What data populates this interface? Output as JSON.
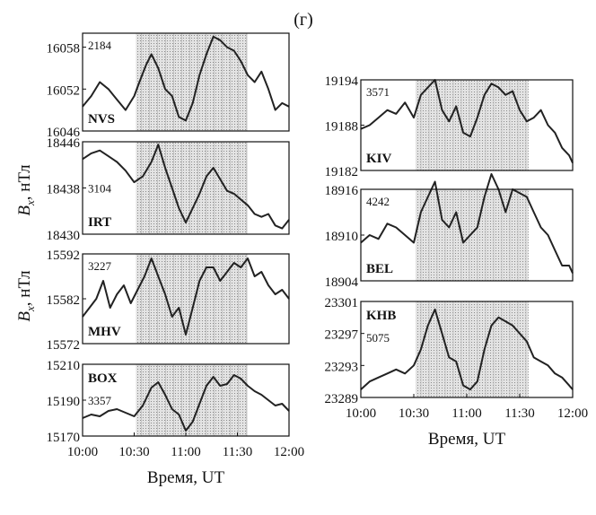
{
  "figure": {
    "label": "(г)",
    "ylabel_left": "Bx, нТл",
    "ylabel_parts": {
      "main": "B",
      "sub": "x",
      "unit": ", нТл"
    }
  },
  "style": {
    "line_color": "#222222",
    "shade_color": "#d3d3d3",
    "frame_color": "#111111",
    "text_color": "#111111"
  },
  "chart_data": [
    {
      "type": "line",
      "station": "NVS",
      "number": "2184",
      "x_range": [
        "10:00",
        "12:00"
      ],
      "ylim": [
        16046,
        16060
      ],
      "yticks": [
        16046,
        16052,
        16058
      ],
      "ytick_labels": [
        "16046",
        "16052",
        "16058"
      ],
      "shaded_interval": [
        "10:31",
        "11:36"
      ],
      "series": [
        {
          "x": [
            "10:00",
            "10:05",
            "10:10",
            "10:15",
            "10:20",
            "10:25",
            "10:30",
            "10:33",
            "10:37",
            "10:40",
            "10:44",
            "10:48",
            "10:52",
            "10:56",
            "11:00",
            "11:04",
            "11:08",
            "11:12",
            "11:16",
            "11:20",
            "11:24",
            "11:28",
            "11:32",
            "11:36",
            "11:40",
            "11:44",
            "11:48",
            "11:52",
            "11:56",
            "12:00"
          ],
          "values": [
            16049.5,
            16051.0,
            16053.0,
            16052.0,
            16050.5,
            16049.0,
            16051.0,
            16053.0,
            16055.5,
            16057.0,
            16055.0,
            16052.0,
            16051.0,
            16048.0,
            16047.5,
            16050.0,
            16054.0,
            16057.0,
            16059.5,
            16059.0,
            16058.0,
            16057.5,
            16056.0,
            16054.0,
            16053.0,
            16054.5,
            16052.0,
            16049.0,
            16050.0,
            16049.5
          ]
        }
      ]
    },
    {
      "type": "line",
      "station": "IRT",
      "number": "3104",
      "x_range": [
        "10:00",
        "12:00"
      ],
      "ylim": [
        18430,
        18446
      ],
      "yticks": [
        18430,
        18438,
        18446
      ],
      "ytick_labels": [
        "18430",
        "18438",
        "18446"
      ],
      "shaded_interval": [
        "10:31",
        "11:36"
      ],
      "series": [
        {
          "x": [
            "10:00",
            "10:05",
            "10:10",
            "10:15",
            "10:20",
            "10:25",
            "10:30",
            "10:35",
            "10:40",
            "10:44",
            "10:48",
            "10:52",
            "10:56",
            "11:00",
            "11:04",
            "11:08",
            "11:12",
            "11:16",
            "11:20",
            "11:24",
            "11:28",
            "11:32",
            "11:36",
            "11:40",
            "11:44",
            "11:48",
            "11:52",
            "11:56",
            "12:00"
          ],
          "values": [
            18443.0,
            18444.0,
            18444.5,
            18443.5,
            18442.5,
            18441.0,
            18439.0,
            18440.0,
            18442.5,
            18445.5,
            18441.5,
            18438.0,
            18434.5,
            18432.0,
            18434.5,
            18437.0,
            18440.0,
            18441.5,
            18439.5,
            18437.5,
            18437.0,
            18436.0,
            18435.0,
            18433.5,
            18433.0,
            18433.5,
            18431.5,
            18431.0,
            18432.5
          ]
        }
      ]
    },
    {
      "type": "line",
      "station": "MHV",
      "number": "3227",
      "x_range": [
        "10:00",
        "12:00"
      ],
      "ylim": [
        15572,
        15592
      ],
      "yticks": [
        15572,
        15582,
        15592
      ],
      "ytick_labels": [
        "15572",
        "15582",
        "15592"
      ],
      "shaded_interval": [
        "10:31",
        "11:36"
      ],
      "series": [
        {
          "x": [
            "10:00",
            "10:04",
            "10:08",
            "10:12",
            "10:16",
            "10:20",
            "10:24",
            "10:28",
            "10:32",
            "10:36",
            "10:40",
            "10:44",
            "10:48",
            "10:52",
            "10:56",
            "11:00",
            "11:04",
            "11:08",
            "11:12",
            "11:16",
            "11:20",
            "11:24",
            "11:28",
            "11:32",
            "11:36",
            "11:40",
            "11:44",
            "11:48",
            "11:52",
            "11:56",
            "12:00"
          ],
          "values": [
            15578.0,
            15580.0,
            15582.0,
            15586.0,
            15580.0,
            15583.0,
            15585.0,
            15581.0,
            15584.0,
            15587.0,
            15591.0,
            15587.0,
            15583.0,
            15578.0,
            15580.0,
            15574.0,
            15580.0,
            15586.0,
            15589.0,
            15589.0,
            15586.0,
            15588.0,
            15590.0,
            15589.0,
            15591.0,
            15587.0,
            15588.0,
            15585.0,
            15583.0,
            15584.0,
            15582.0
          ]
        }
      ]
    },
    {
      "type": "line",
      "station": "BOX",
      "number": "3357",
      "x_range": [
        "10:00",
        "12:00"
      ],
      "ylim": [
        15170,
        15210
      ],
      "yticks": [
        15170,
        15190,
        15210
      ],
      "ytick_labels": [
        "15170",
        "15190",
        "15210"
      ],
      "xticks": [
        "10:00",
        "10:30",
        "11:00",
        "11:30",
        "12:00"
      ],
      "xlabel": "Время, UT",
      "shaded_interval": [
        "10:31",
        "11:36"
      ],
      "series": [
        {
          "x": [
            "10:00",
            "10:05",
            "10:10",
            "10:15",
            "10:20",
            "10:25",
            "10:30",
            "10:35",
            "10:40",
            "10:44",
            "10:48",
            "10:52",
            "10:56",
            "11:00",
            "11:04",
            "11:08",
            "11:12",
            "11:16",
            "11:20",
            "11:24",
            "11:28",
            "11:32",
            "11:36",
            "11:40",
            "11:44",
            "11:48",
            "11:52",
            "11:56",
            "12:00"
          ],
          "values": [
            15180.0,
            15182.0,
            15181.0,
            15184.0,
            15185.0,
            15183.0,
            15181.0,
            15187.0,
            15197.0,
            15200.0,
            15193.0,
            15185.0,
            15182.0,
            15173.0,
            15178.0,
            15188.0,
            15198.0,
            15203.0,
            15198.0,
            15199.0,
            15204.0,
            15202.0,
            15198.0,
            15195.0,
            15193.0,
            15190.0,
            15187.0,
            15188.0,
            15184.0
          ]
        }
      ]
    },
    {
      "type": "line",
      "station": "KIV",
      "number": "3571",
      "x_range": [
        "10:00",
        "12:00"
      ],
      "ylim": [
        19182,
        19194
      ],
      "yticks": [
        19182,
        19188,
        19194
      ],
      "ytick_labels": [
        "19182",
        "19188",
        "19194"
      ],
      "shaded_interval": [
        "10:31",
        "11:35"
      ],
      "series": [
        {
          "x": [
            "10:00",
            "10:05",
            "10:10",
            "10:15",
            "10:20",
            "10:25",
            "10:30",
            "10:34",
            "10:38",
            "10:42",
            "10:46",
            "10:50",
            "10:54",
            "10:58",
            "11:02",
            "11:06",
            "11:10",
            "11:14",
            "11:18",
            "11:22",
            "11:26",
            "11:30",
            "11:34",
            "11:38",
            "11:42",
            "11:46",
            "11:50",
            "11:54",
            "11:58",
            "12:00"
          ],
          "values": [
            19187.5,
            19188.0,
            19189.0,
            19190.0,
            19189.5,
            19191.0,
            19189.0,
            19192.0,
            19193.0,
            19194.0,
            19190.0,
            19188.5,
            19190.5,
            19187.0,
            19186.5,
            19189.0,
            19192.0,
            19193.5,
            19193.0,
            19192.0,
            19192.5,
            19190.0,
            19188.5,
            19189.0,
            19190.0,
            19188.0,
            19187.0,
            19185.0,
            19184.0,
            19183.0
          ]
        }
      ]
    },
    {
      "type": "line",
      "station": "BEL",
      "number": "4242",
      "x_range": [
        "10:00",
        "12:00"
      ],
      "ylim": [
        18904,
        18916
      ],
      "yticks": [
        18904,
        18910,
        18916
      ],
      "ytick_labels": [
        "18904",
        "18910",
        "18916"
      ],
      "shaded_interval": [
        "10:31",
        "11:35"
      ],
      "series": [
        {
          "x": [
            "10:00",
            "10:05",
            "10:10",
            "10:15",
            "10:20",
            "10:25",
            "10:30",
            "10:34",
            "10:38",
            "10:42",
            "10:46",
            "10:50",
            "10:54",
            "10:58",
            "11:02",
            "11:06",
            "11:10",
            "11:14",
            "11:18",
            "11:22",
            "11:26",
            "11:30",
            "11:34",
            "11:38",
            "11:42",
            "11:46",
            "11:50",
            "11:54",
            "11:58",
            "12:00"
          ],
          "values": [
            18909.0,
            18910.0,
            18909.5,
            18911.5,
            18911.0,
            18910.0,
            18909.0,
            18913.0,
            18915.0,
            18917.0,
            18912.0,
            18911.0,
            18913.0,
            18909.0,
            18910.0,
            18911.0,
            18915.0,
            18918.0,
            18916.0,
            18913.0,
            18916.0,
            18915.5,
            18915.0,
            18913.0,
            18911.0,
            18910.0,
            18908.0,
            18906.0,
            18906.0,
            18905.0
          ]
        }
      ]
    },
    {
      "type": "line",
      "station": "KHB",
      "number": "5075",
      "x_range": [
        "10:00",
        "12:00"
      ],
      "ylim": [
        23289,
        23301
      ],
      "yticks": [
        23289,
        23293,
        23297,
        23301
      ],
      "ytick_labels": [
        "23289",
        "23293",
        "23297",
        "23301"
      ],
      "xticks": [
        "10:00",
        "10:30",
        "11:00",
        "11:30",
        "12:00"
      ],
      "xlabel": "Время, UT",
      "shaded_interval": [
        "10:31",
        "11:35"
      ],
      "series": [
        {
          "x": [
            "10:00",
            "10:05",
            "10:10",
            "10:15",
            "10:20",
            "10:25",
            "10:30",
            "10:34",
            "10:38",
            "10:42",
            "10:46",
            "10:50",
            "10:54",
            "10:58",
            "11:02",
            "11:06",
            "11:10",
            "11:14",
            "11:18",
            "11:22",
            "11:26",
            "11:30",
            "11:34",
            "11:38",
            "11:42",
            "11:46",
            "11:50",
            "11:54",
            "11:58",
            "12:00"
          ],
          "values": [
            23290.0,
            23291.0,
            23291.5,
            23292.0,
            23292.5,
            23292.0,
            23293.0,
            23295.0,
            23298.0,
            23300.0,
            23297.0,
            23294.0,
            23293.5,
            23290.5,
            23290.0,
            23291.0,
            23295.0,
            23298.0,
            23299.0,
            23298.5,
            23298.0,
            23297.0,
            23296.0,
            23294.0,
            23293.5,
            23293.0,
            23292.0,
            23291.5,
            23290.5,
            23290.0
          ]
        }
      ]
    }
  ]
}
